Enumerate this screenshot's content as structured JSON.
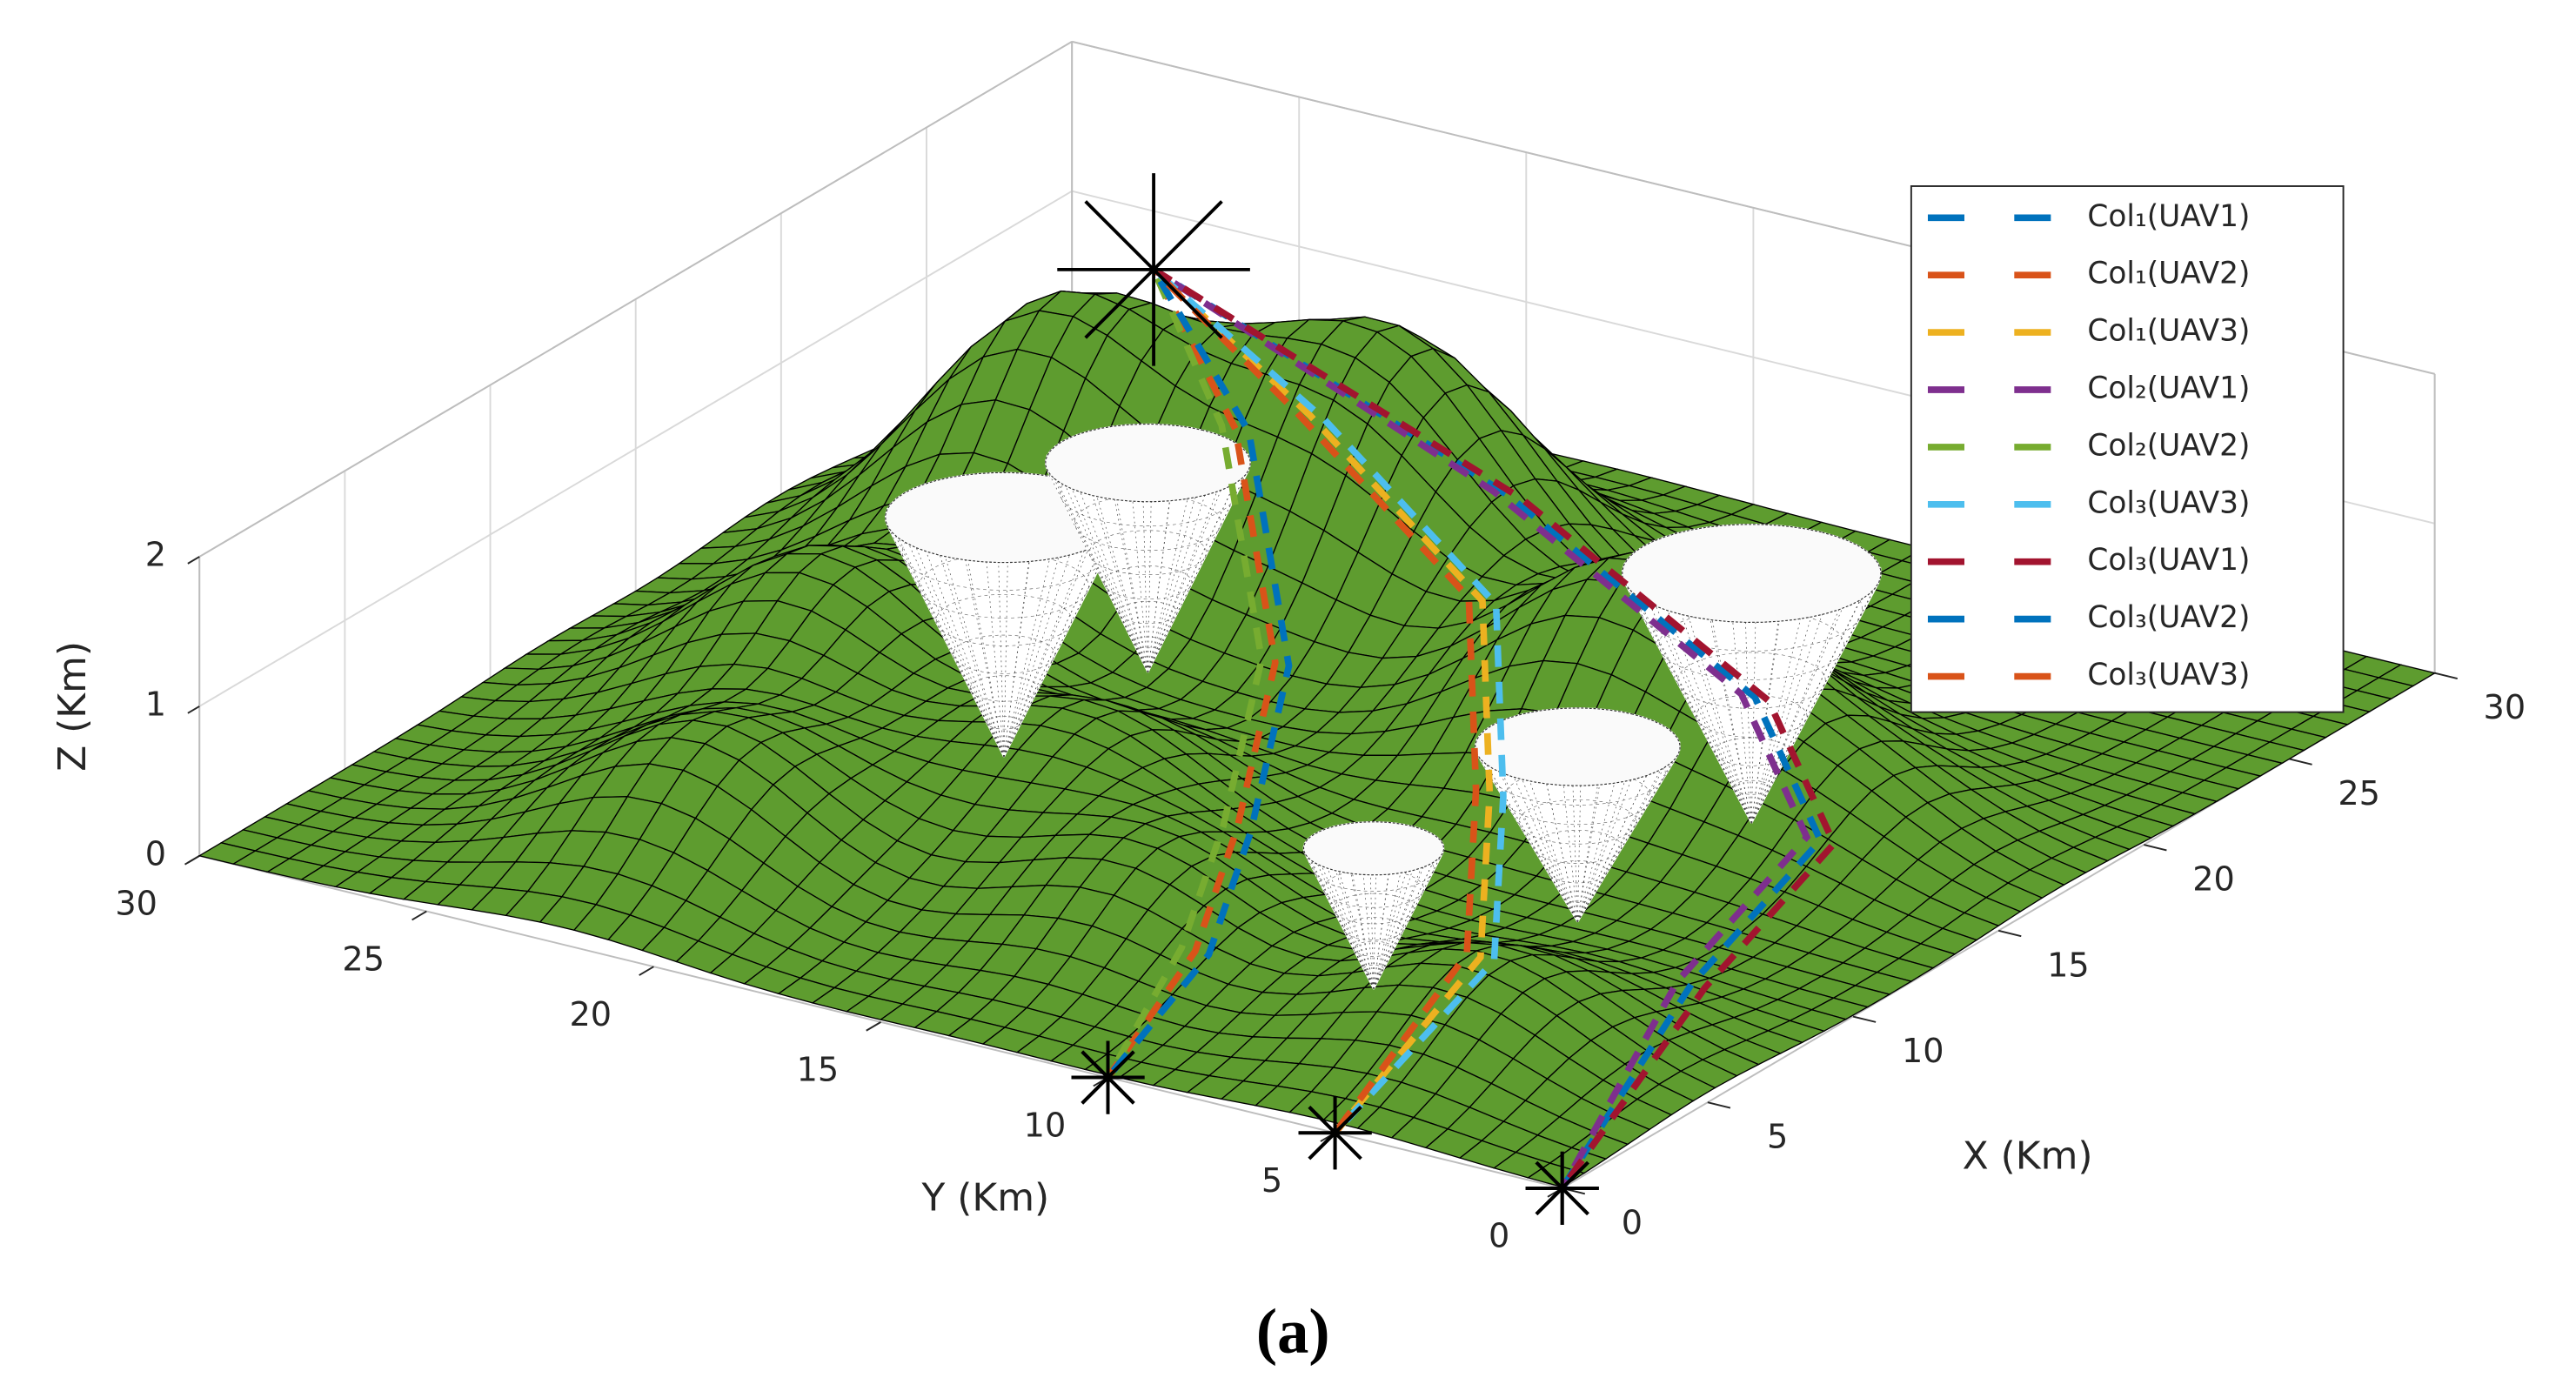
{
  "chart_data": {
    "type": "surface3d",
    "xlabel": "X (Km)",
    "ylabel": "Y (Km)",
    "zlabel": "Z (Km)",
    "caption": "(a)",
    "xlim": [
      0,
      30
    ],
    "ylim": [
      0,
      30
    ],
    "zlim": [
      0,
      2
    ],
    "xticks": [
      0,
      5,
      10,
      15,
      20,
      25,
      30
    ],
    "yticks": [
      0,
      5,
      10,
      15,
      20,
      25,
      30
    ],
    "zticks": [
      0,
      1,
      2
    ],
    "grid": true,
    "legend": "northeast",
    "terrain": {
      "color": "#5e9c2f",
      "edge_color": "#000000",
      "peaks": [
        {
          "x": 20,
          "y": 24,
          "h": 1.75,
          "s": 2.6
        },
        {
          "x": 22,
          "y": 18,
          "h": 1.8,
          "s": 2.8
        },
        {
          "x": 12,
          "y": 24,
          "h": 1.05,
          "s": 2.5
        },
        {
          "x": 5,
          "y": 22,
          "h": 0.85,
          "s": 2.5
        },
        {
          "x": 5,
          "y": 5,
          "h": 0.6,
          "s": 2.4
        },
        {
          "x": 10,
          "y": 17,
          "h": 0.75,
          "s": 2.4
        },
        {
          "x": 18,
          "y": 10,
          "h": 1.35,
          "s": 2.6
        },
        {
          "x": 17,
          "y": 5,
          "h": 0.5,
          "s": 2.3
        },
        {
          "x": 6,
          "y": 13,
          "h": 0.6,
          "s": 2.3
        }
      ]
    },
    "threats": [
      {
        "x": 9.7,
        "y": 18.5,
        "z_min": 0.4,
        "z_max": 2.0,
        "r": 2.2
      },
      {
        "x": 13.4,
        "y": 17.7,
        "z_min": 0.6,
        "z_max": 2.0,
        "r": 1.9
      },
      {
        "x": 15.1,
        "y": 5.5,
        "z_min": 0.3,
        "z_max": 1.97,
        "r": 2.4
      },
      {
        "x": 9.9,
        "y": 6.0,
        "z_min": 0.2,
        "z_max": 1.37,
        "r": 1.9
      },
      {
        "x": 5.7,
        "y": 7.8,
        "z_min": 0.1,
        "z_max": 1.04,
        "r": 1.3
      }
    ],
    "series": [
      {
        "name": "Col₁(UAV1)",
        "color": "#0072BD",
        "x": [
          0,
          6,
          12,
          16,
          20,
          25
        ],
        "y": [
          0,
          1,
          2,
          6,
          14,
          25
        ],
        "z": [
          0,
          0.6,
          0.8,
          1,
          1.3,
          1.42
        ]
      },
      {
        "name": "Col₁(UAV2)",
        "color": "#D95319",
        "x": [
          0,
          3,
          6,
          12,
          20,
          25
        ],
        "y": [
          10,
          10,
          11,
          14,
          20,
          25
        ],
        "z": [
          0,
          0.5,
          0.9,
          1.1,
          1.3,
          1.42
        ]
      },
      {
        "name": "Col₁(UAV3)",
        "color": "#EDB120",
        "x": [
          0,
          5,
          10,
          16,
          21,
          25
        ],
        "y": [
          5,
          5,
          8,
          12,
          19,
          25
        ],
        "z": [
          0,
          0.6,
          0.9,
          1.2,
          1.35,
          1.42
        ]
      },
      {
        "name": "Col₂(UAV1)",
        "color": "#7E2F8E",
        "x": [
          0,
          6,
          12,
          16,
          20,
          25
        ],
        "y": [
          0,
          1.3,
          2.3,
          6.3,
          14.3,
          25
        ],
        "z": [
          0,
          0.6,
          0.8,
          1,
          1.3,
          1.42
        ]
      },
      {
        "name": "Col₂(UAV2)",
        "color": "#77AC30",
        "x": [
          0,
          3,
          6,
          12,
          20,
          25
        ],
        "y": [
          10,
          10.3,
          11.3,
          14.3,
          20.3,
          25
        ],
        "z": [
          0,
          0.5,
          0.9,
          1.1,
          1.3,
          1.42
        ]
      },
      {
        "name": "Col₃(UAV3)",
        "color": "#4DBEEE",
        "x": [
          0,
          5,
          10,
          16,
          21,
          25
        ],
        "y": [
          5,
          4.7,
          7.7,
          11.7,
          18.7,
          25
        ],
        "z": [
          0,
          0.6,
          0.9,
          1.2,
          1.35,
          1.42
        ]
      },
      {
        "name": "Col₃(UAV1)",
        "color": "#A2142F",
        "x": [
          0,
          6,
          12,
          16,
          20,
          25
        ],
        "y": [
          0,
          0.7,
          1.7,
          5.7,
          13.7,
          25
        ],
        "z": [
          0,
          0.6,
          0.8,
          1,
          1.3,
          1.42
        ]
      },
      {
        "name": "Col₃(UAV2)",
        "color": "#0072BD",
        "x": [
          0,
          3,
          6,
          12,
          20,
          25
        ],
        "y": [
          10,
          9.7,
          10.7,
          13.7,
          19.7,
          25
        ],
        "z": [
          0,
          0.5,
          0.9,
          1.1,
          1.3,
          1.42
        ]
      },
      {
        "name": "Col₃(UAV3)",
        "color": "#D95319",
        "x": [
          0,
          5,
          10,
          16,
          21,
          25
        ],
        "y": [
          5,
          5.3,
          8.3,
          12.3,
          19.3,
          25
        ],
        "z": [
          0,
          0.6,
          0.9,
          1.2,
          1.35,
          1.42
        ]
      }
    ]
  }
}
